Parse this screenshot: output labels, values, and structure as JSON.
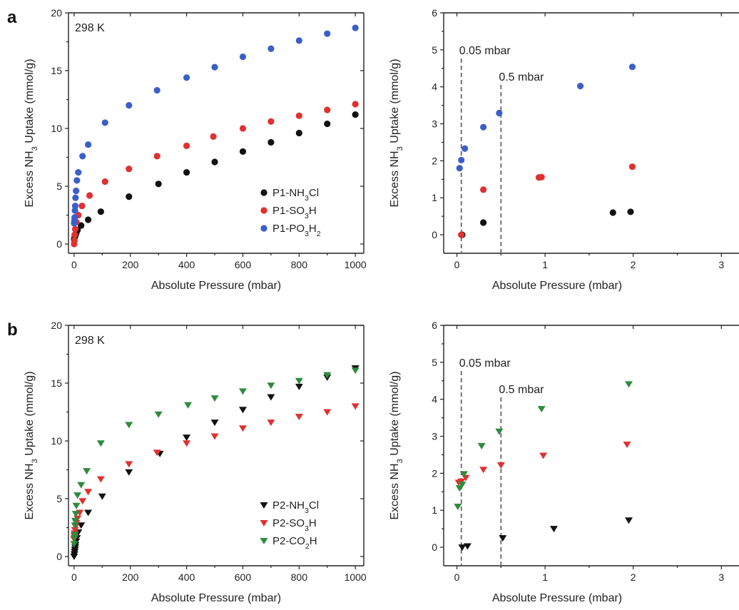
{
  "chart_data": [
    {
      "id": "a-main",
      "type": "scatter",
      "panel_label": "a",
      "annotation": "298 K",
      "xlabel": "Absolute Pressure (mbar)",
      "ylabel_parts": [
        "Excess NH",
        "3",
        " Uptake (mmol/g)"
      ],
      "xlim": [
        -20,
        1030
      ],
      "ylim": [
        -0.8,
        20
      ],
      "xticks": [
        0,
        200,
        400,
        600,
        800,
        1000
      ],
      "yticks": [
        0,
        5,
        10,
        15,
        20
      ],
      "grid": false,
      "legend_position": "bottom-right",
      "series": [
        {
          "name_parts": [
            "P1-NH",
            "3",
            "Cl"
          ],
          "marker": "circle",
          "color": "#111111",
          "x": [
            0,
            2,
            4,
            6,
            8,
            12,
            25,
            50,
            95,
            195,
            300,
            400,
            500,
            600,
            700,
            800,
            900,
            1000
          ],
          "y": [
            0.4,
            0.6,
            0.7,
            0.85,
            1.0,
            1.2,
            1.6,
            2.1,
            2.8,
            4.1,
            5.2,
            6.2,
            7.1,
            8.0,
            8.8,
            9.6,
            10.4,
            11.2
          ]
        },
        {
          "name_parts": [
            "P1-SO",
            "3",
            "H"
          ],
          "marker": "circle",
          "color": "#e03030",
          "x": [
            0,
            1,
            2,
            4,
            8,
            15,
            28,
            55,
            110,
            195,
            295,
            400,
            495,
            600,
            700,
            800,
            900,
            1000
          ],
          "y": [
            0.0,
            0.3,
            0.8,
            1.3,
            1.9,
            2.5,
            3.3,
            4.2,
            5.4,
            6.5,
            7.6,
            8.5,
            9.3,
            10.0,
            10.6,
            11.1,
            11.6,
            12.1
          ]
        },
        {
          "name_parts": [
            "P1-PO",
            "3",
            "H",
            "2"
          ],
          "marker": "circle",
          "color": "#3a5fc8",
          "x": [
            0,
            1,
            2,
            3,
            4,
            5,
            7,
            10,
            15,
            30,
            50,
            110,
            195,
            295,
            400,
            500,
            600,
            700,
            800,
            900,
            1000
          ],
          "y": [
            1.8,
            2.0,
            2.3,
            2.9,
            3.3,
            4.0,
            4.6,
            5.5,
            6.2,
            7.6,
            8.6,
            10.5,
            12.0,
            13.3,
            14.4,
            15.3,
            16.2,
            16.9,
            17.6,
            18.2,
            18.7
          ]
        }
      ]
    },
    {
      "id": "a-inset",
      "type": "scatter",
      "xlabel": "Absolute Pressure (mbar)",
      "ylabel_parts": [
        "Excess NH",
        "3",
        " Uptake (mmol/g)"
      ],
      "xlim": [
        -0.15,
        3.2
      ],
      "ylim": [
        -0.5,
        6
      ],
      "xticks": [
        0,
        1,
        2,
        3
      ],
      "yticks": [
        0,
        1,
        2,
        3,
        4,
        5,
        6
      ],
      "grid": false,
      "reference_lines": [
        {
          "x": 0.05,
          "label": "0.05 mbar"
        },
        {
          "x": 0.5,
          "label": "0.5 mbar"
        }
      ],
      "series": [
        {
          "name_parts": [
            "P1-NH",
            "3",
            "Cl"
          ],
          "marker": "circle",
          "color": "#111111",
          "x": [
            0.06,
            0.3,
            1.77,
            1.97
          ],
          "y": [
            0.0,
            0.33,
            0.6,
            0.62
          ]
        },
        {
          "name_parts": [
            "P1-SO",
            "3",
            "H"
          ],
          "marker": "circle",
          "color": "#e03030",
          "x": [
            0.05,
            0.3,
            0.93,
            0.96,
            1.99
          ],
          "y": [
            0.0,
            1.22,
            1.55,
            1.56,
            1.84
          ]
        },
        {
          "name_parts": [
            "P1-PO",
            "3",
            "H",
            "2"
          ],
          "marker": "circle",
          "color": "#3a5fc8",
          "x": [
            0.03,
            0.05,
            0.09,
            0.3,
            0.48,
            1.4,
            1.99
          ],
          "y": [
            1.8,
            2.02,
            2.33,
            2.91,
            3.29,
            4.02,
            4.54
          ]
        }
      ]
    },
    {
      "id": "b-main",
      "type": "scatter",
      "panel_label": "b",
      "annotation": "298 K",
      "xlabel": "Absolute Pressure (mbar)",
      "ylabel_parts": [
        "Excess NH",
        "3",
        " Uptake (mmol/g)"
      ],
      "xlim": [
        -20,
        1030
      ],
      "ylim": [
        -0.8,
        20
      ],
      "xticks": [
        0,
        200,
        400,
        600,
        800,
        1000
      ],
      "yticks": [
        0,
        5,
        10,
        15,
        20
      ],
      "grid": false,
      "legend_position": "bottom-right",
      "series": [
        {
          "name_parts": [
            "P2-NH",
            "3",
            "Cl"
          ],
          "marker": "triangle-down",
          "color": "#111111",
          "x": [
            0,
            1,
            2,
            3,
            4,
            5,
            7,
            10,
            15,
            25,
            50,
            100,
            195,
            305,
            400,
            500,
            600,
            700,
            800,
            900,
            1000
          ],
          "y": [
            0.0,
            0.2,
            0.4,
            0.6,
            0.8,
            1.0,
            1.3,
            1.6,
            2.1,
            2.7,
            3.8,
            5.2,
            7.3,
            8.9,
            10.3,
            11.6,
            12.7,
            13.8,
            14.7,
            15.5,
            16.3
          ]
        },
        {
          "name_parts": [
            "P2-SO",
            "3",
            "H"
          ],
          "marker": "triangle-down",
          "color": "#e03030",
          "x": [
            0,
            1,
            2,
            3,
            5,
            8,
            12,
            20,
            30,
            50,
            95,
            195,
            295,
            400,
            500,
            600,
            700,
            800,
            900,
            1000
          ],
          "y": [
            1.5,
            1.8,
            2.0,
            2.3,
            2.6,
            2.9,
            3.3,
            3.8,
            4.8,
            5.6,
            6.7,
            8.0,
            9.0,
            9.8,
            10.4,
            11.1,
            11.6,
            12.1,
            12.5,
            13.0
          ]
        },
        {
          "name_parts": [
            "P2-CO",
            "2",
            "H"
          ],
          "marker": "triangle-down",
          "color": "#2e8b3e",
          "x": [
            0,
            1,
            2,
            3,
            4,
            6,
            8,
            12,
            25,
            45,
            95,
            195,
            300,
            405,
            500,
            600,
            700,
            800,
            900,
            1000
          ],
          "y": [
            1.1,
            1.6,
            1.9,
            2.7,
            3.1,
            3.7,
            4.4,
            5.3,
            6.2,
            7.4,
            9.8,
            11.4,
            12.3,
            13.1,
            13.7,
            14.3,
            14.8,
            15.2,
            15.7,
            16.1
          ]
        }
      ]
    },
    {
      "id": "b-inset",
      "type": "scatter",
      "xlabel": "Absolute Pressure (mbar)",
      "ylabel_parts": [
        "Excess NH",
        "3",
        " Uptake (mmol/g)"
      ],
      "xlim": [
        -0.15,
        3.2
      ],
      "ylim": [
        -0.5,
        6
      ],
      "xticks": [
        0,
        1,
        2,
        3
      ],
      "yticks": [
        0,
        1,
        2,
        3,
        4,
        5,
        6
      ],
      "grid": false,
      "reference_lines": [
        {
          "x": 0.05,
          "label": "0.05 mbar"
        },
        {
          "x": 0.5,
          "label": "0.5 mbar"
        }
      ],
      "series": [
        {
          "name_parts": [
            "P2-NH",
            "3",
            "Cl"
          ],
          "marker": "triangle-down",
          "color": "#111111",
          "x": [
            0.06,
            0.12,
            0.52,
            1.1,
            1.95
          ],
          "y": [
            0.0,
            0.03,
            0.25,
            0.5,
            0.73
          ]
        },
        {
          "name_parts": [
            "P2-SO",
            "3",
            "H"
          ],
          "marker": "triangle-down",
          "color": "#e03030",
          "x": [
            0.02,
            0.05,
            0.1,
            0.3,
            0.5,
            0.98,
            1.93
          ],
          "y": [
            1.75,
            1.78,
            1.88,
            2.1,
            2.22,
            2.48,
            2.78
          ]
        },
        {
          "name_parts": [
            "P2-CO",
            "2",
            "H"
          ],
          "marker": "triangle-down",
          "color": "#2e8b3e",
          "x": [
            0.01,
            0.03,
            0.06,
            0.08,
            0.28,
            0.48,
            0.96,
            1.95
          ],
          "y": [
            1.1,
            1.6,
            1.7,
            1.98,
            2.74,
            3.13,
            3.74,
            4.41
          ]
        }
      ]
    }
  ]
}
